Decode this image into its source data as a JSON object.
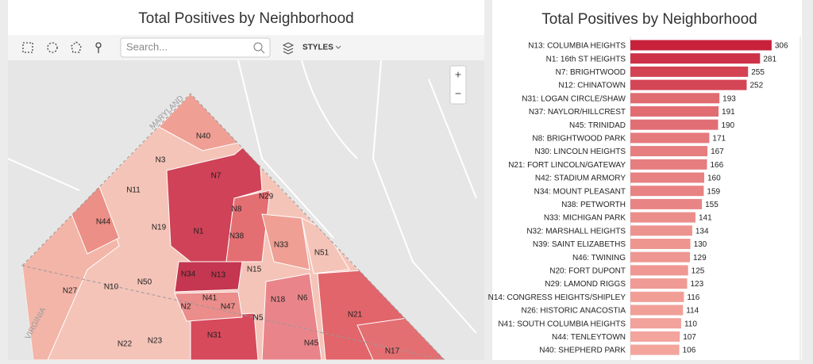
{
  "map_panel": {
    "title": "Total Positives by Neighborhood",
    "search_placeholder": "Search...",
    "styles_button": "STYLES",
    "zoom": [
      "+",
      "−"
    ],
    "region_labels": [
      "MARYLAND",
      "VIRGINIA"
    ],
    "neighborhood_labels": [
      "N40",
      "N3",
      "N7",
      "N11",
      "N29",
      "N44",
      "N8",
      "N19",
      "N1",
      "N38",
      "N33",
      "N51",
      "N15",
      "N34",
      "N13",
      "N27",
      "N10",
      "N50",
      "N6",
      "N18",
      "N41",
      "N47",
      "N2",
      "N5",
      "N21",
      "N31",
      "N23",
      "N45",
      "N22",
      "N17"
    ]
  },
  "chart_data": {
    "type": "hbar",
    "title": "Total Positives by Neighborhood",
    "categories": [
      "N13: COLUMBIA HEIGHTS",
      "N1: 16th ST HEIGHTS",
      "N7: BRIGHTWOOD",
      "N12: CHINATOWN",
      "N31: LOGAN CIRCLE/SHAW",
      "N37: NAYLOR/HILLCREST",
      "N45: TRINIDAD",
      "N8: BRIGHTWOOD PARK",
      "N30: LINCOLN HEIGHTS",
      "N21: FORT LINCOLN/GATEWAY",
      "N42: STADIUM ARMORY",
      "N34: MOUNT PLEASANT",
      "N38: PETWORTH",
      "N33: MICHIGAN PARK",
      "N32: MARSHALL HEIGHTS",
      "N39: SAINT ELIZABETHS",
      "N46: TWINING",
      "N20: FORT DUPONT",
      "N29: LAMOND RIGGS",
      "N14: CONGRESS HEIGHTS/SHIPLEY",
      "N26: HISTORIC ANACOSTIA",
      "N41: SOUTH COLUMBIA HEIGHTS",
      "N44: TENLEYTOWN",
      "N40: SHEPHERD PARK"
    ],
    "values": [
      306,
      281,
      255,
      252,
      193,
      191,
      190,
      171,
      167,
      166,
      160,
      159,
      155,
      141,
      134,
      130,
      129,
      125,
      123,
      116,
      114,
      110,
      107,
      106
    ],
    "xlim": [
      0,
      320
    ],
    "color_range": [
      "#f3a59c",
      "#c8213c"
    ]
  }
}
